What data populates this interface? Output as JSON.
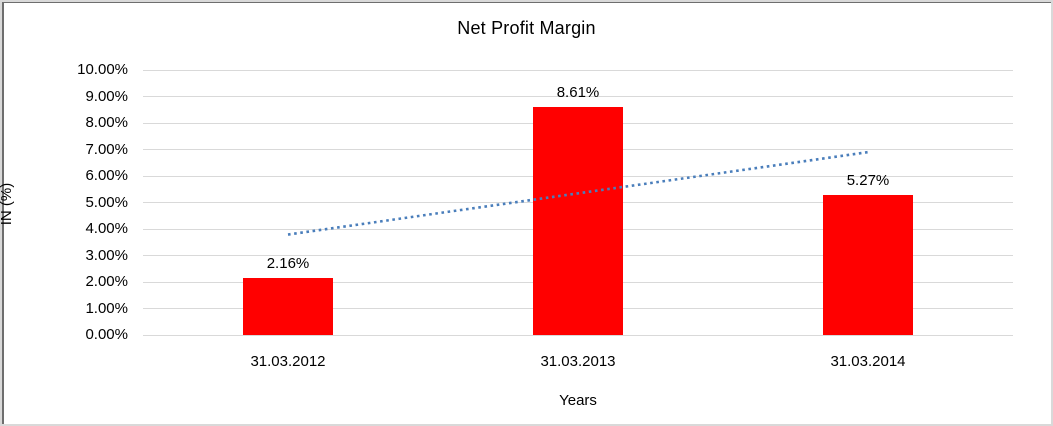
{
  "chart_data": {
    "type": "bar",
    "title": "Net Profit Margin",
    "xlabel": "Years",
    "ylabel": "IN (%)",
    "categories": [
      "31.03.2012",
      "31.03.2013",
      "31.03.2014"
    ],
    "values": [
      2.16,
      8.61,
      5.27
    ],
    "data_labels": [
      "2.16%",
      "8.61%",
      "5.27%"
    ],
    "ylim": [
      0,
      10
    ],
    "y_tick_step": 1,
    "y_tick_labels": [
      "0.00%",
      "1.00%",
      "2.00%",
      "3.00%",
      "4.00%",
      "5.00%",
      "6.00%",
      "7.00%",
      "8.00%",
      "9.00%",
      "10.00%"
    ],
    "grid": true,
    "legend": false,
    "bar_color": "#FF0000",
    "gridline_color": "#D9D9D9",
    "trendline": {
      "type": "linear",
      "style": "dotted",
      "color": "#4A7EBB",
      "fitted_values": [
        3.79,
        6.9
      ]
    }
  }
}
